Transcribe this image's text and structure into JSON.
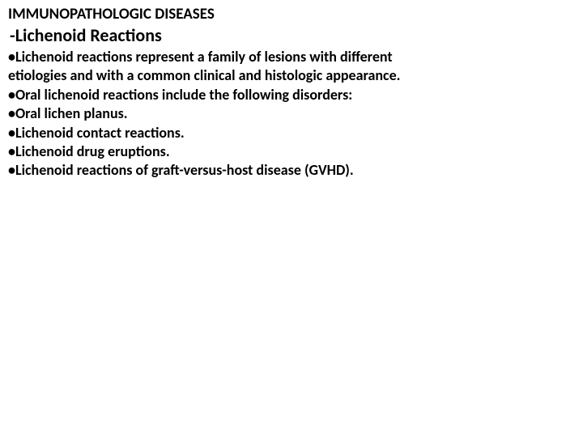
{
  "heading1": "IMMUNOPATHOLOGIC DISEASES",
  "heading2": "-Lichenoid Reactions",
  "lines": {
    "l0": "•Lichenoid reactions represent a family of lesions with different",
    "l1": "etiologies and with a common clinical and histologic appearance.",
    "l2": "•Oral lichenoid reactions include the following disorders:",
    "l3": "•Oral lichen planus.",
    "l4": "•Lichenoid contact reactions.",
    "l5": "•Lichenoid drug eruptions.",
    "l6": "•Lichenoid reactions of graft-versus-host disease (GVHD)."
  }
}
